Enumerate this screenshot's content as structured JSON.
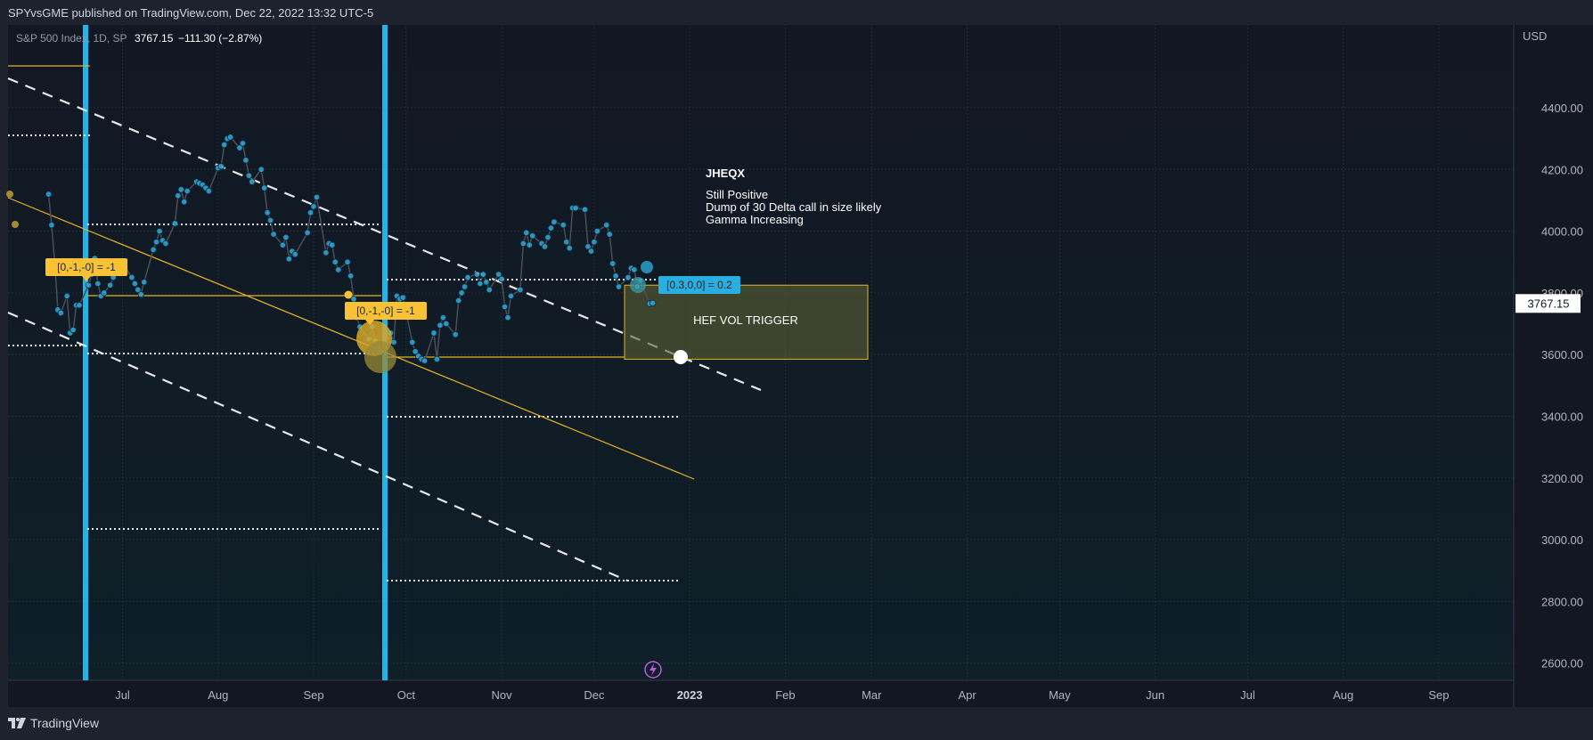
{
  "header": {
    "published": "SPYvsGME published on TradingView.com, Dec 22, 2022 13:32 UTC-5"
  },
  "footer": {
    "brand": "TradingView"
  },
  "chart_data": {
    "type": "line",
    "symbol_line": "S&P 500 Index, 1D, SP",
    "last_price": "3767.15",
    "change": "−111.30 (−2.87%)",
    "currency": "USD",
    "price_label": "3767.15",
    "ylim": [
      2530,
      4620
    ],
    "y_ticks": [
      {
        "v": 4400,
        "label": "4400.00"
      },
      {
        "v": 4200,
        "label": "4200.00"
      },
      {
        "v": 4000,
        "label": "4000.00"
      },
      {
        "v": 3800,
        "label": "3800.00"
      },
      {
        "v": 3600,
        "label": "3600.00"
      },
      {
        "v": 3400,
        "label": "3400.00"
      },
      {
        "v": 3200,
        "label": "3200.00"
      },
      {
        "v": 3000,
        "label": "3000.00"
      },
      {
        "v": 2800,
        "label": "2800.00"
      },
      {
        "v": 2600,
        "label": "2600.00"
      }
    ],
    "x_ticks": [
      {
        "d": 12,
        "label": "Jul"
      },
      {
        "d": 43,
        "label": "Aug"
      },
      {
        "d": 74,
        "label": "Sep"
      },
      {
        "d": 104,
        "label": "Oct"
      },
      {
        "d": 135,
        "label": "Nov"
      },
      {
        "d": 165,
        "label": "Dec"
      },
      {
        "d": 196,
        "label": "2023",
        "bold": true
      },
      {
        "d": 227,
        "label": "Feb"
      },
      {
        "d": 255,
        "label": "Mar"
      },
      {
        "d": 286,
        "label": "Apr"
      },
      {
        "d": 316,
        "label": "May"
      },
      {
        "d": 347,
        "label": "Jun"
      },
      {
        "d": 377,
        "label": "Jul"
      },
      {
        "d": 408,
        "label": "Aug"
      },
      {
        "d": 439,
        "label": "Sep"
      }
    ],
    "series": [
      {
        "x": [
          -12,
          -11,
          -10,
          -9,
          -8,
          -6,
          -5,
          -4,
          -3,
          -2,
          1,
          2,
          3,
          4,
          5,
          6,
          8,
          9,
          10,
          11,
          12,
          15,
          16,
          17,
          18,
          19,
          22,
          23,
          24,
          25,
          26,
          29,
          30,
          31,
          32,
          33,
          36,
          37,
          38,
          39,
          40,
          43,
          44,
          45,
          46,
          47,
          50,
          51,
          52,
          53,
          54,
          57,
          58,
          59,
          60,
          61,
          64,
          65,
          66,
          67,
          68,
          72,
          73,
          74,
          75,
          78,
          79,
          80,
          81,
          82,
          85,
          86,
          87,
          88,
          89,
          92,
          93,
          94,
          95,
          96,
          99,
          100,
          101,
          102,
          103,
          106,
          107,
          108,
          109,
          110,
          113,
          114,
          115,
          116,
          117,
          120,
          121,
          122,
          123,
          124,
          127,
          128,
          129,
          130,
          131,
          134,
          135,
          136,
          137,
          138,
          141,
          142,
          143,
          144,
          145,
          148,
          149,
          150,
          151,
          152,
          155,
          156,
          157,
          158,
          159,
          162,
          163,
          164,
          165,
          166,
          169,
          170,
          171,
          172,
          173,
          176,
          177,
          178,
          179,
          180,
          183,
          184
        ],
        "y": [
          4120,
          4020,
          3900,
          3745,
          3735,
          3790,
          3670,
          3680,
          3760,
          3760,
          3825,
          3860,
          3912,
          3830,
          3790,
          3800,
          3825,
          3850,
          3880,
          3900,
          3900,
          3850,
          3830,
          3810,
          3795,
          3835,
          3940,
          3965,
          4000,
          3970,
          3960,
          4025,
          4115,
          4135,
          4095,
          4130,
          4160,
          4155,
          4150,
          4140,
          4130,
          4205,
          4210,
          4280,
          4300,
          4305,
          4270,
          4285,
          4230,
          4180,
          4160,
          4200,
          4140,
          4060,
          4035,
          3990,
          3955,
          3980,
          3910,
          3935,
          3925,
          3995,
          4060,
          4080,
          4110,
          3930,
          3960,
          3955,
          3900,
          3875,
          3900,
          3855,
          3780,
          3720,
          3690,
          3650,
          3690,
          3645,
          3625,
          3610,
          3670,
          3640,
          3790,
          3780,
          3785,
          3640,
          3610,
          3595,
          3585,
          3580,
          3670,
          3585,
          3695,
          3720,
          3700,
          3665,
          3775,
          3800,
          3820,
          3850,
          3860,
          3830,
          3860,
          3835,
          3810,
          3860,
          3845,
          3755,
          3720,
          3790,
          3810,
          3960,
          3995,
          3955,
          3985,
          3960,
          3950,
          3980,
          4010,
          4030,
          4020,
          3965,
          3945,
          4075,
          4075,
          4070,
          3950,
          3935,
          3965,
          4000,
          4020,
          3990,
          3895,
          3855,
          3820,
          3850,
          3880,
          3875,
          3820,
          3840,
          3765,
          3767
        ]
      }
    ],
    "annotations": {
      "note_title": "JHEQX",
      "note_lines": [
        "Still Positive",
        "Dump of 30 Delta call in size likely",
        "Gamma Increasing"
      ],
      "box_label": "HEF VOL TRIGGER",
      "box_range": [
        3585,
        3825
      ],
      "tag1": "[0,-1,-0] = -1",
      "tag2": "[0,-1,-0] = -1",
      "tag3": "[0.3,0,0] = 0.2"
    },
    "colors": {
      "background": "#131722",
      "price_line": "#4a4e59",
      "price_points": "#2ea6d6",
      "vertical_lines": "#1fb4ea",
      "trendline": "#e6b422",
      "box_fill": "rgba(91,96,52,0.62)",
      "box_border": "#e6b422",
      "tag_yellow": "#f9c235",
      "tag_cyan": "#29aee0",
      "bolt": "#c158dc"
    },
    "grid": true
  }
}
